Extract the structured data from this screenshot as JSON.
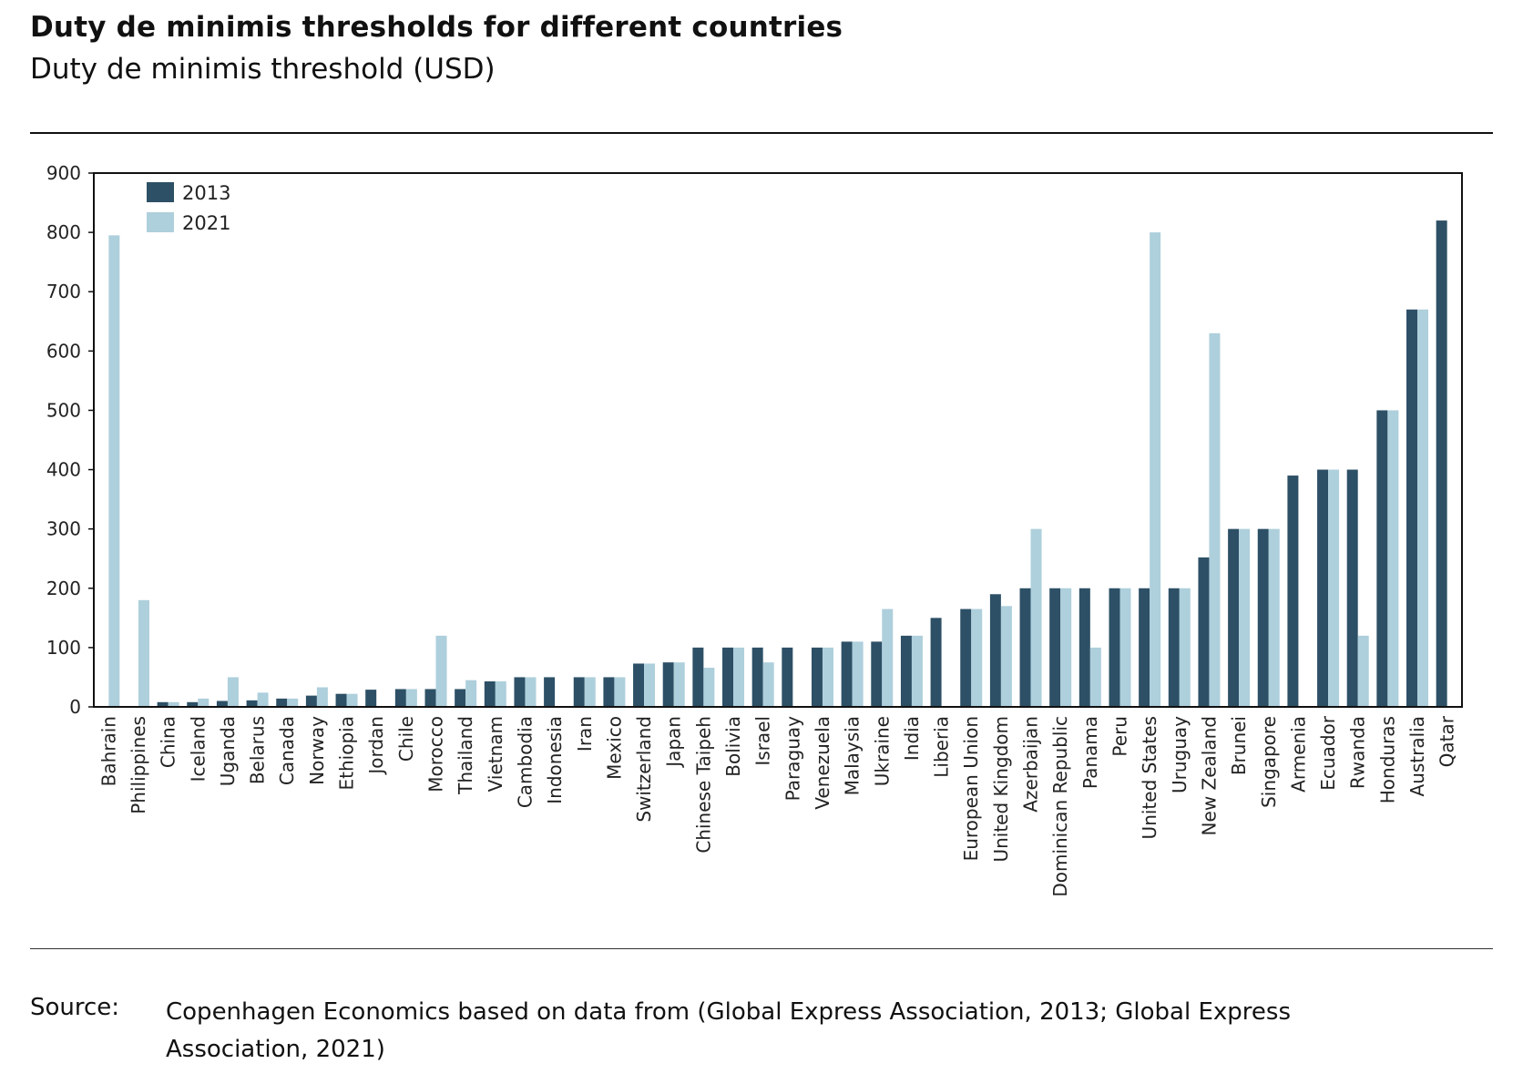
{
  "title": "Duty de minimis thresholds for different countries",
  "subtitle": "Duty de minimis threshold (USD)",
  "source": {
    "label": "Source:",
    "text": "Copenhagen Economics based on data from (Global Express Association, 2013; Global Express Association, 2021)"
  },
  "colors": {
    "2013": "#2d5066",
    "2021": "#aecfdc"
  },
  "chart_data": {
    "type": "bar",
    "title": "Duty de minimis thresholds for different countries",
    "ylabel": "Duty de minimis threshold (USD)",
    "ylim": [
      0,
      900
    ],
    "yticks": [
      0,
      100,
      200,
      300,
      400,
      500,
      600,
      700,
      800,
      900
    ],
    "legend_position": "top-left",
    "grid": false,
    "categories": [
      "Bahrain",
      "Philippines",
      "China",
      "Iceland",
      "Uganda",
      "Belarus",
      "Canada",
      "Norway",
      "Ethiopia",
      "Jordan",
      "Chile",
      "Morocco",
      "Thailand",
      "Vietnam",
      "Cambodia",
      "Indonesia",
      "Iran",
      "Mexico",
      "Switzerland",
      "Japan",
      "Chinese Taipeh",
      "Bolivia",
      "Israel",
      "Paraguay",
      "Venezuela",
      "Malaysia",
      "Ukraine",
      "India",
      "Liberia",
      "European Union",
      "United Kingdom",
      "Azerbaijan",
      "Dominican Republic",
      "Panama",
      "Peru",
      "United States",
      "Uruguay",
      "New Zealand",
      "Brunei",
      "Singapore",
      "Armenia",
      "Ecuador",
      "Rwanda",
      "Honduras",
      "Australia",
      "Qatar"
    ],
    "series": [
      {
        "name": "2013",
        "values": [
          0,
          0,
          8,
          8,
          10,
          11,
          14,
          19,
          22,
          29,
          30,
          30,
          30,
          43,
          50,
          50,
          50,
          50,
          73,
          75,
          100,
          100,
          100,
          100,
          100,
          110,
          110,
          120,
          150,
          165,
          190,
          200,
          200,
          200,
          200,
          200,
          200,
          252,
          300,
          300,
          390,
          400,
          400,
          500,
          670,
          820
        ]
      },
      {
        "name": "2021",
        "values": [
          795,
          180,
          8,
          14,
          50,
          24,
          14,
          33,
          22,
          0,
          30,
          120,
          45,
          43,
          50,
          0,
          50,
          50,
          73,
          75,
          66,
          100,
          75,
          0,
          100,
          110,
          165,
          120,
          0,
          165,
          170,
          300,
          200,
          100,
          200,
          800,
          200,
          630,
          300,
          300,
          0,
          400,
          120,
          500,
          670,
          0
        ]
      }
    ]
  }
}
